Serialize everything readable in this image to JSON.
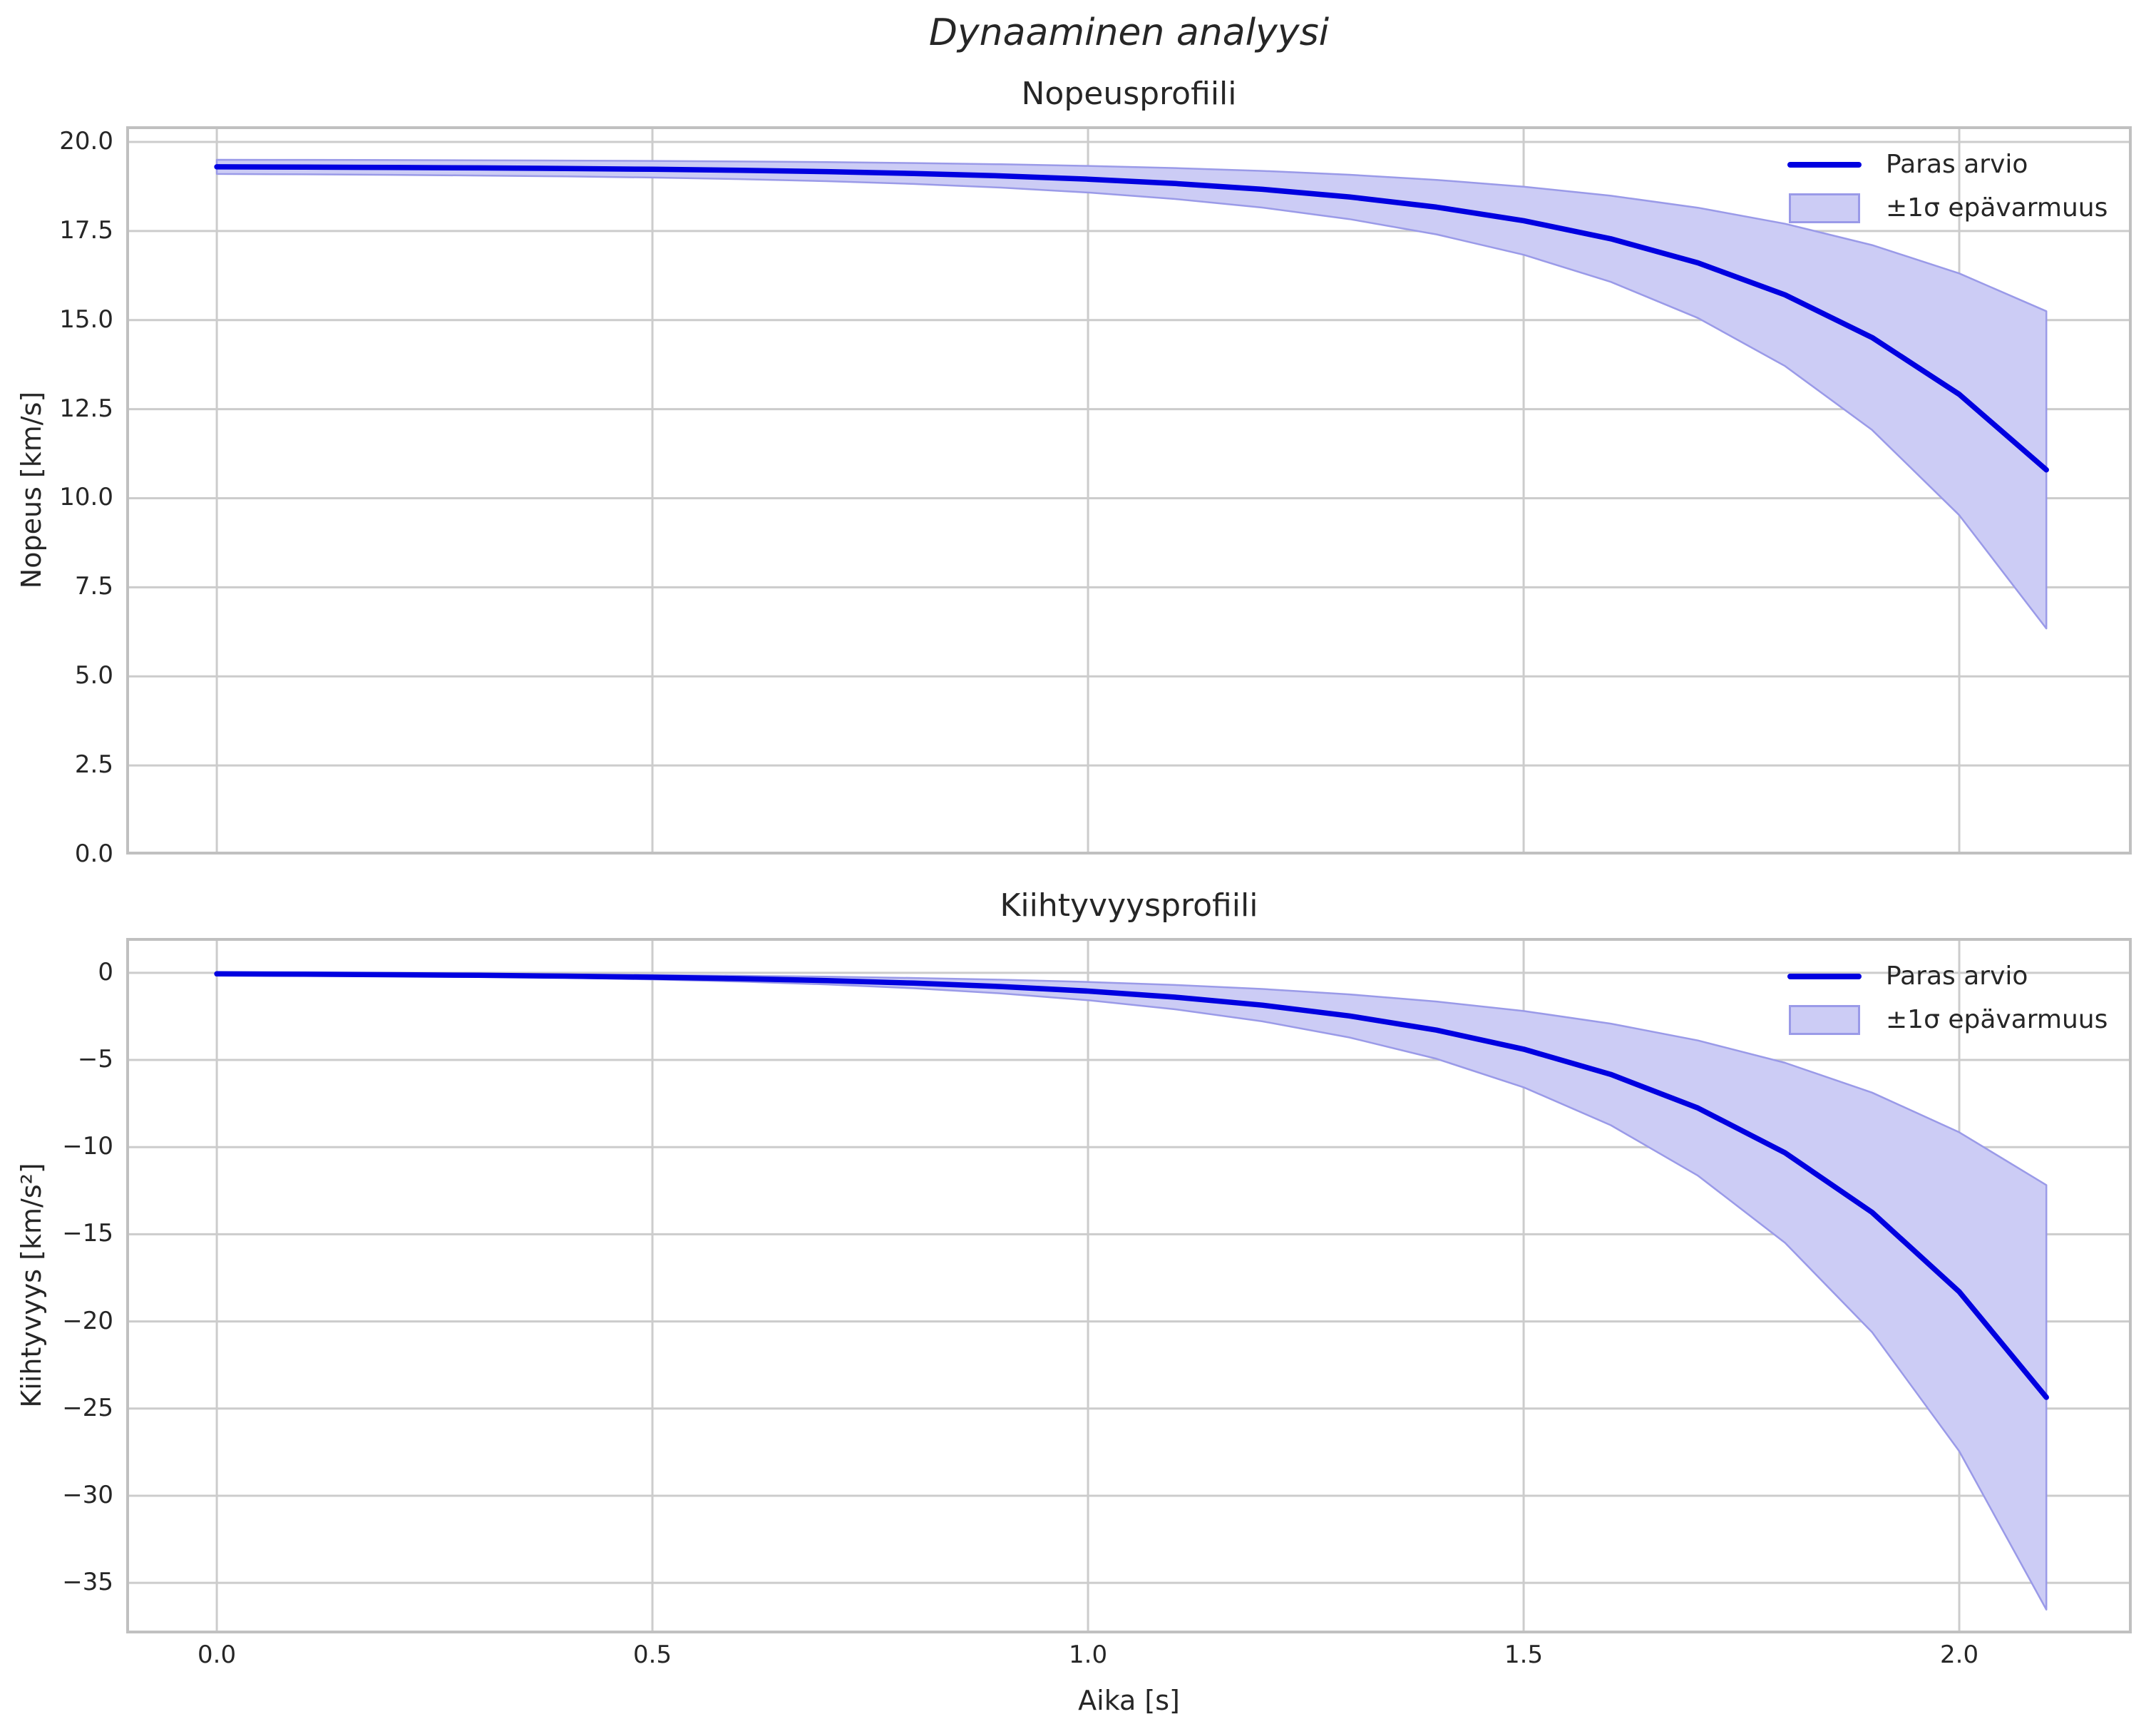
{
  "figure": {
    "title": "Dynaaminen analyysi"
  },
  "colors": {
    "line": "#0000e0",
    "band_fill": "#ccccf5",
    "band_edge": "#9a9ae8",
    "grid": "#cccccc",
    "spine": "#c0c0c0",
    "text": "#262626",
    "background": "#ffffff"
  },
  "chart_data": [
    {
      "type": "line",
      "title": "Nopeusprofiili",
      "xlabel": "",
      "ylabel": "Nopeus [km/s]",
      "grid": true,
      "xlim": [
        -0.104,
        2.198
      ],
      "ylim": [
        0,
        20.44
      ],
      "xticks": {
        "values": [
          0.0,
          0.5,
          1.0,
          1.5,
          2.0
        ],
        "labels": []
      },
      "yticks": {
        "values": [
          0.0,
          2.5,
          5.0,
          7.5,
          10.0,
          12.5,
          15.0,
          17.5,
          20.0
        ],
        "labels": [
          "0.0",
          "2.5",
          "5.0",
          "7.5",
          "10.0",
          "12.5",
          "15.0",
          "17.5",
          "20.0"
        ]
      },
      "x": [
        0.0,
        0.1,
        0.2,
        0.3,
        0.4,
        0.5,
        0.6,
        0.7,
        0.8,
        0.9,
        1.0,
        1.1,
        1.2,
        1.3,
        1.4,
        1.5,
        1.6,
        1.7,
        1.8,
        1.9,
        2.0,
        2.1
      ],
      "series": [
        {
          "name": "Paras arvio",
          "kind": "line",
          "values": [
            19.3,
            19.293,
            19.284,
            19.271,
            19.255,
            19.233,
            19.204,
            19.166,
            19.114,
            19.046,
            18.954,
            18.833,
            18.671,
            18.456,
            18.17,
            17.789,
            17.281,
            16.606,
            15.707,
            14.51,
            12.917,
            10.797
          ]
        },
        {
          "name": "±1σ epävarmuus",
          "kind": "uncertainty-band",
          "upper": [
            19.5,
            19.497,
            19.492,
            19.486,
            19.478,
            19.467,
            19.452,
            19.433,
            19.407,
            19.373,
            19.327,
            19.266,
            19.186,
            19.078,
            18.935,
            18.744,
            18.491,
            18.153,
            17.703,
            17.105,
            16.309,
            15.248
          ],
          "lower": [
            19.1,
            19.09,
            19.076,
            19.057,
            19.033,
            19.0,
            18.956,
            18.898,
            18.821,
            18.718,
            18.581,
            18.399,
            18.157,
            17.834,
            17.405,
            16.833,
            16.072,
            15.059,
            13.71,
            11.915,
            9.526,
            6.345
          ]
        }
      ],
      "legend": {
        "position": "upper-right",
        "entries": [
          {
            "kind": "line",
            "label": "Paras arvio"
          },
          {
            "kind": "band",
            "label": "±1σ epävarmuus"
          }
        ]
      }
    },
    {
      "type": "line",
      "title": "Kiihtyvyysprofiili",
      "xlabel": "Aika [s]",
      "ylabel": "Kiihtyvyys [km/s²]",
      "grid": true,
      "xlim": [
        -0.104,
        2.198
      ],
      "ylim": [
        -37.9,
        2.0
      ],
      "xticks": {
        "values": [
          0.0,
          0.5,
          1.0,
          1.5,
          2.0
        ],
        "labels": [
          "0.0",
          "0.5",
          "1.0",
          "1.5",
          "2.0"
        ]
      },
      "yticks": {
        "values": [
          0,
          -5,
          -10,
          -15,
          -20,
          -25,
          -30,
          -35
        ],
        "labels": [
          "0",
          "−5",
          "−10",
          "−15",
          "−20",
          "−25",
          "−30",
          "−35"
        ]
      },
      "x": [
        0.0,
        0.1,
        0.2,
        0.3,
        0.4,
        0.5,
        0.6,
        0.7,
        0.8,
        0.9,
        1.0,
        1.1,
        1.2,
        1.3,
        1.4,
        1.5,
        1.6,
        1.7,
        1.8,
        1.9,
        2.0,
        2.1
      ],
      "series": [
        {
          "name": "Paras arvio",
          "kind": "line",
          "values": [
            -0.06,
            -0.08,
            -0.106,
            -0.142,
            -0.188,
            -0.251,
            -0.334,
            -0.444,
            -0.591,
            -0.787,
            -1.048,
            -1.395,
            -1.856,
            -2.471,
            -3.289,
            -4.378,
            -5.828,
            -7.758,
            -10.326,
            -13.745,
            -18.297,
            -24.354
          ]
        },
        {
          "name": "±1σ epävarmuus",
          "kind": "uncertainty-band",
          "upper": [
            -0.03,
            -0.04,
            -0.053,
            -0.071,
            -0.094,
            -0.125,
            -0.167,
            -0.222,
            -0.296,
            -0.394,
            -0.524,
            -0.697,
            -0.928,
            -1.236,
            -1.645,
            -2.189,
            -2.914,
            -3.879,
            -5.163,
            -6.873,
            -9.148,
            -12.177
          ],
          "lower": [
            -0.09,
            -0.12,
            -0.159,
            -0.212,
            -0.283,
            -0.376,
            -0.501,
            -0.666,
            -0.887,
            -1.181,
            -1.572,
            -2.092,
            -2.785,
            -3.707,
            -4.934,
            -6.568,
            -8.741,
            -11.637,
            -15.49,
            -20.618,
            -27.445,
            -36.532
          ]
        }
      ],
      "legend": {
        "position": "upper-right",
        "entries": [
          {
            "kind": "line",
            "label": "Paras arvio"
          },
          {
            "kind": "band",
            "label": "±1σ epävarmuus"
          }
        ]
      }
    }
  ]
}
